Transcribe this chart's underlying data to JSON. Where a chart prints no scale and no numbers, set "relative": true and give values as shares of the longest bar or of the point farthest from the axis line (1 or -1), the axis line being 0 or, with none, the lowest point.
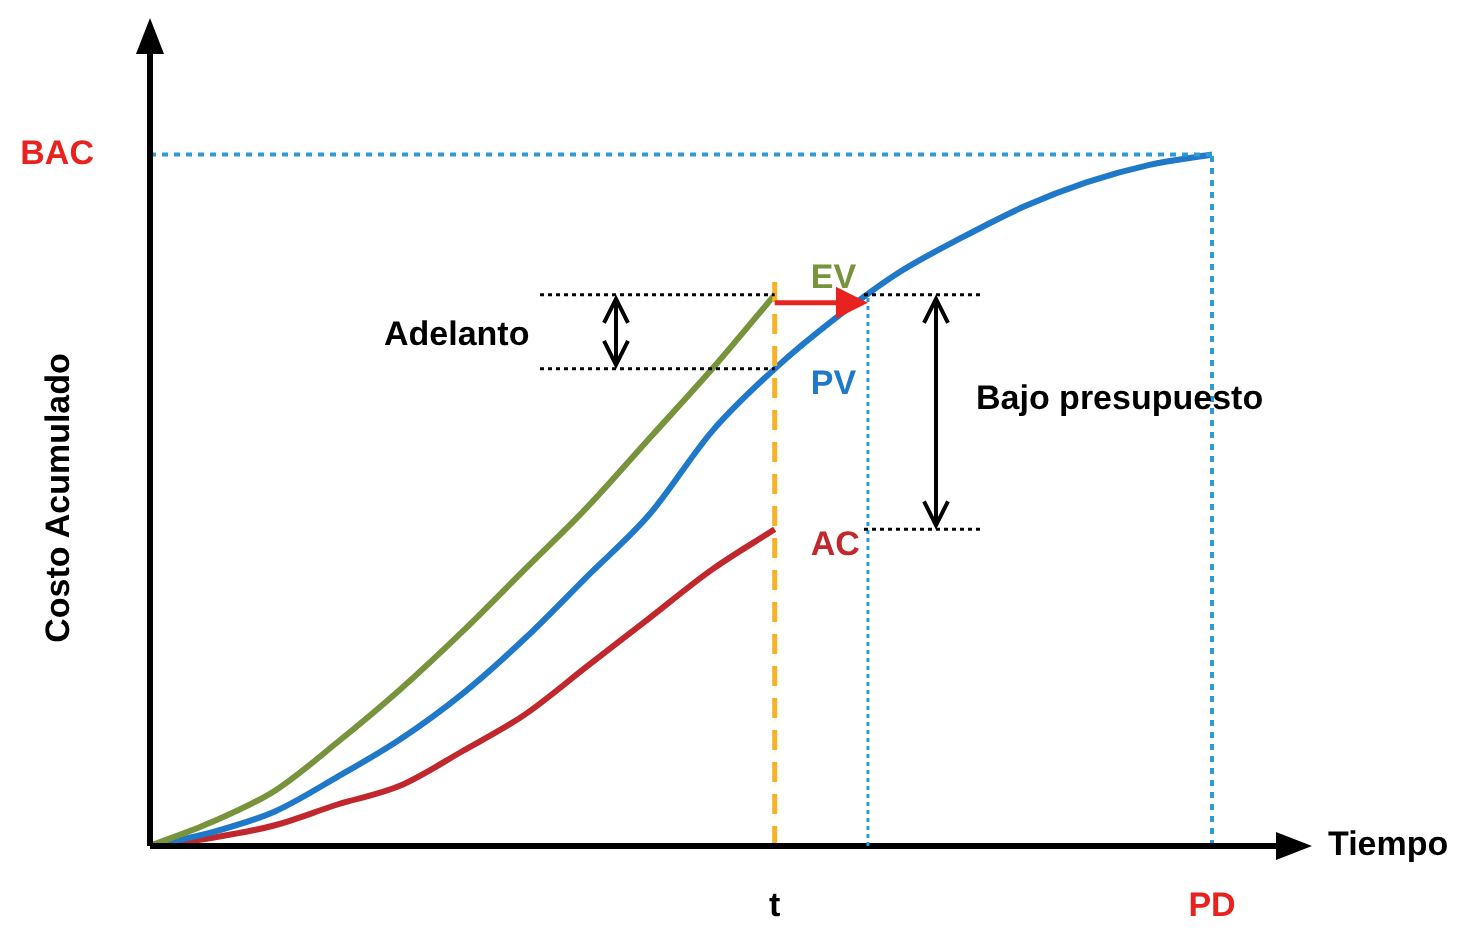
{
  "chart_data": {
    "type": "line",
    "relative": true,
    "xlabel": "Tiempo",
    "ylabel": "Costo Acumulado",
    "categories": [
      null,
      null,
      null,
      null,
      null,
      null,
      null,
      null,
      null,
      null,
      "t",
      null,
      null,
      null,
      null,
      null,
      null,
      "PD"
    ],
    "series": [
      {
        "name": "EV",
        "color": "#77933c",
        "values": [
          0,
          0.035,
          0.08,
          0.15,
          0.226,
          0.31,
          0.4,
          0.49,
          0.59,
          0.69,
          0.797,
          null,
          null,
          null,
          null,
          null,
          null,
          null
        ]
      },
      {
        "name": "PV",
        "color": "#1f78c8",
        "values": [
          0,
          0.02,
          0.05,
          0.1,
          0.154,
          0.22,
          0.3,
          0.39,
          0.48,
          0.6,
          0.69,
          0.765,
          0.83,
          0.88,
          0.925,
          0.96,
          0.985,
          1
        ]
      },
      {
        "name": "AC",
        "color": "#c0282d",
        "values": [
          0,
          0.012,
          0.03,
          0.06,
          0.087,
          0.137,
          0.19,
          0.26,
          0.33,
          0.4,
          0.458,
          null,
          null,
          null,
          null,
          null,
          null,
          null
        ]
      }
    ],
    "ref_lines": [
      {
        "axis": "x",
        "value": "t",
        "color": "#f5b325",
        "line_style": "dashed"
      },
      {
        "axis": "y",
        "value": 1,
        "label": "BAC",
        "color": "#2e9bd6",
        "line_style": "dotted"
      },
      {
        "axis": "x",
        "value": "PD",
        "color": "#2e9bd6",
        "line_style": "dotted"
      }
    ],
    "annotations": [
      "Adelanto",
      "Bajo presupuesto"
    ],
    "marker": "none",
    "legend": false,
    "line_style": "solid"
  }
}
